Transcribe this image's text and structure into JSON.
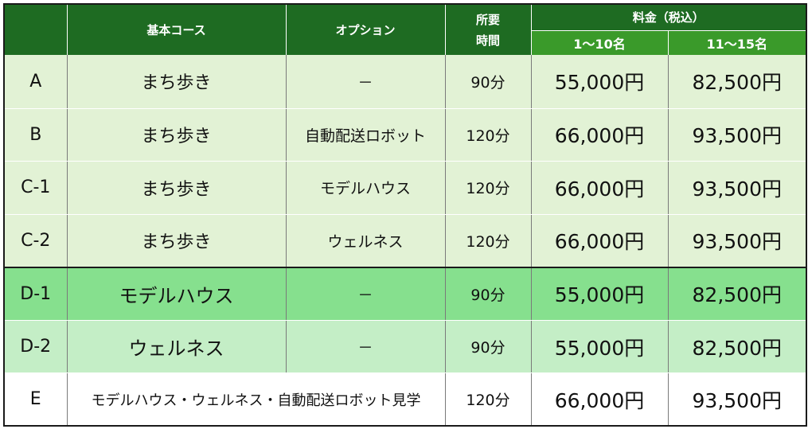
{
  "header": {
    "course": "基本コース",
    "option": "オプション",
    "time_line1": "所要",
    "time_line2": "時間",
    "fee": "料金（税込）",
    "fee_small": "1～10名",
    "fee_large": "11～15名"
  },
  "rows": [
    {
      "id": "A",
      "course": "まち歩き",
      "option": "－",
      "duration": "90分",
      "fee_small": "55,000円",
      "fee_large": "82,500円"
    },
    {
      "id": "B",
      "course": "まち歩き",
      "option": "自動配送ロボット",
      "duration": "120分",
      "fee_small": "66,000円",
      "fee_large": "93,500円"
    },
    {
      "id": "C-1",
      "course": "まち歩き",
      "option": "モデルハウス",
      "duration": "120分",
      "fee_small": "66,000円",
      "fee_large": "93,500円"
    },
    {
      "id": "C-2",
      "course": "まち歩き",
      "option": "ウェルネス",
      "duration": "120分",
      "fee_small": "66,000円",
      "fee_large": "93,500円"
    },
    {
      "id": "D-1",
      "course": "モデルハウス",
      "option": "－",
      "duration": "90分",
      "fee_small": "55,000円",
      "fee_large": "82,500円"
    },
    {
      "id": "D-2",
      "course": "ウェルネス",
      "option": "－",
      "duration": "90分",
      "fee_small": "55,000円",
      "fee_large": "82,500円"
    },
    {
      "id": "E",
      "course_option": "モデルハウス・ウェルネス・自動配送ロボット見学",
      "duration": "120分",
      "fee_small": "66,000円",
      "fee_large": "93,500円"
    }
  ]
}
